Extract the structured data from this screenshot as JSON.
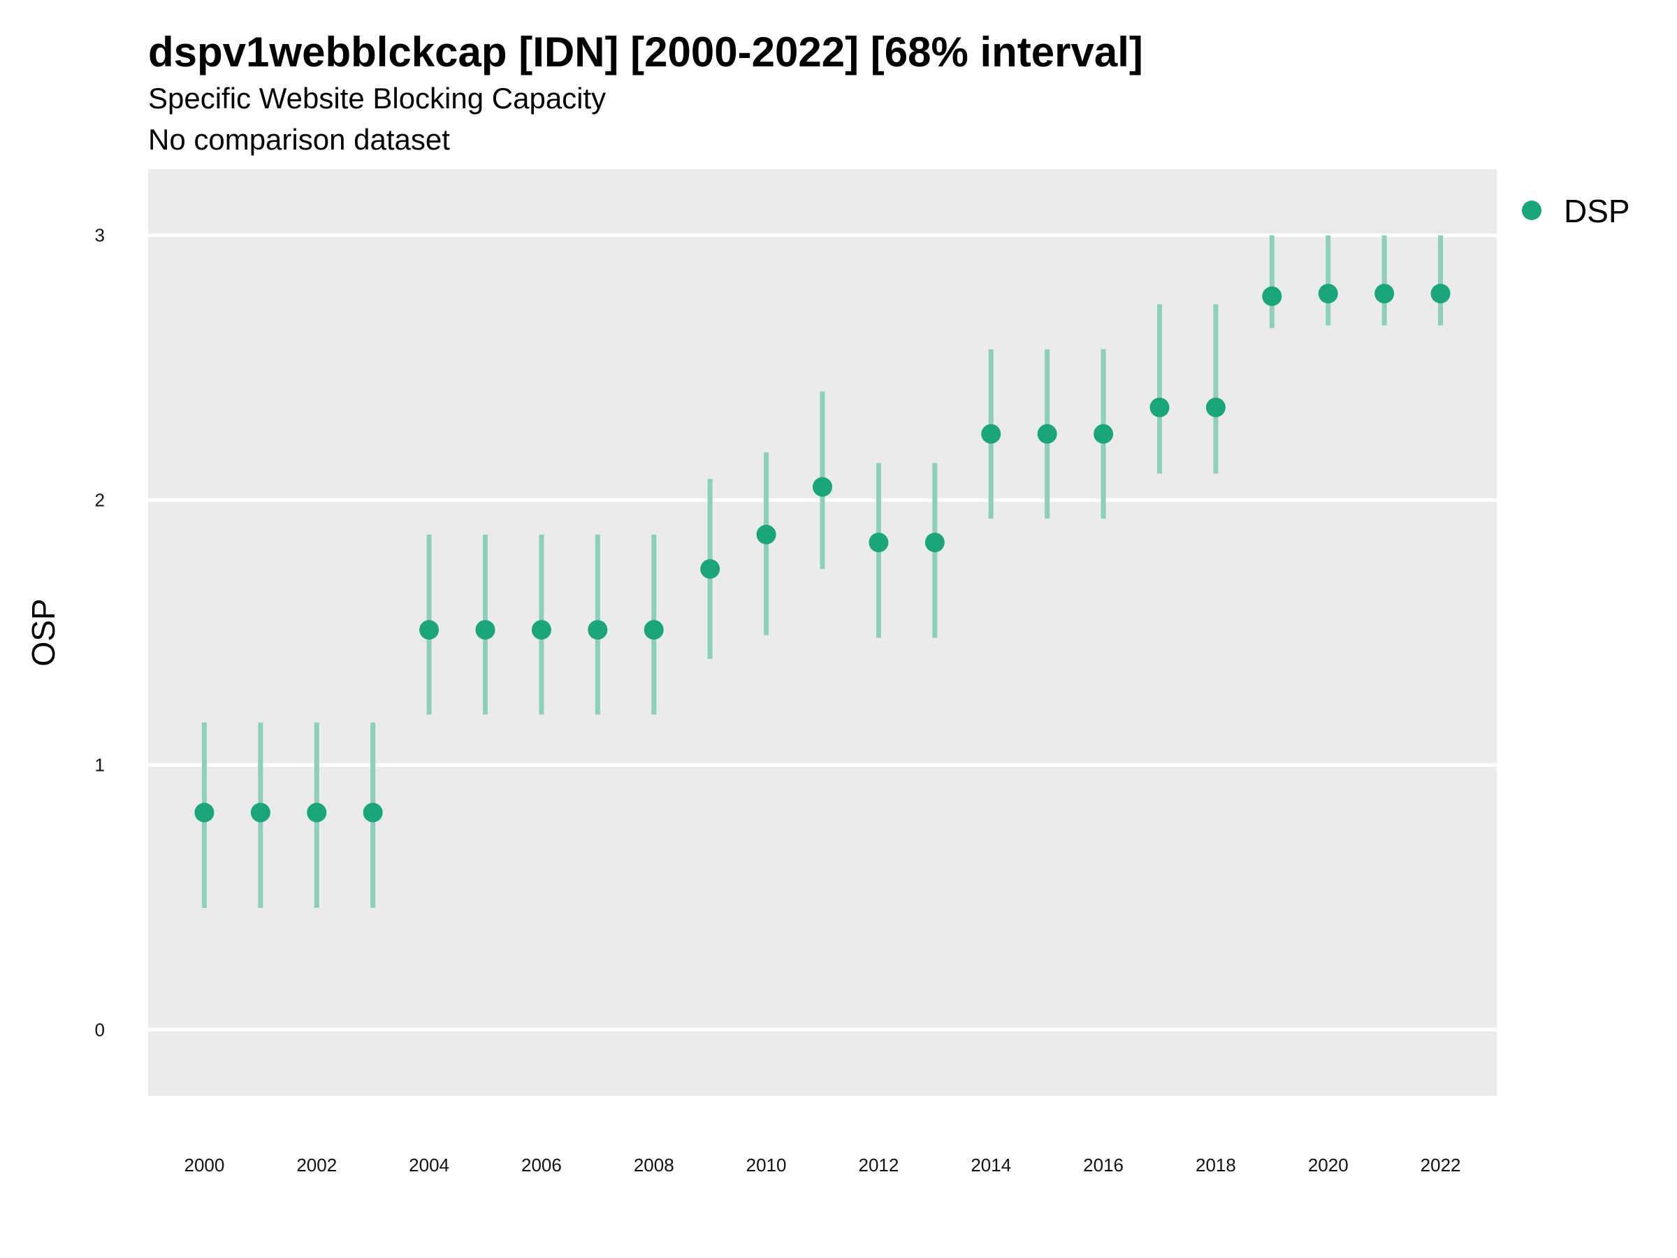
{
  "chart_data": {
    "type": "scatter",
    "title": "dspv1webblckcap [IDN] [2000-2022] [68% interval]",
    "subtitle": "Specific Website Blocking Capacity",
    "caption": "No comparison dataset",
    "ylabel": "OSP",
    "xlabel": "",
    "xlim": [
      1999,
      2023
    ],
    "ylim": [
      -0.25,
      3.25
    ],
    "x_ticks": [
      2000,
      2002,
      2004,
      2006,
      2008,
      2010,
      2012,
      2014,
      2016,
      2018,
      2020,
      2022
    ],
    "y_ticks": [
      0,
      1,
      2,
      3
    ],
    "grid": true,
    "legend": {
      "position": "top-right",
      "entries": [
        "DSP"
      ]
    },
    "colors": {
      "point": "#1aa57a",
      "interval": "#8ccfba",
      "panel": "#ebebeb",
      "grid": "#ffffff"
    },
    "series": [
      {
        "name": "DSP",
        "x": [
          2000,
          2001,
          2002,
          2003,
          2004,
          2005,
          2006,
          2007,
          2008,
          2009,
          2010,
          2011,
          2012,
          2013,
          2014,
          2015,
          2016,
          2017,
          2018,
          2019,
          2020,
          2021,
          2022
        ],
        "y": [
          0.82,
          0.82,
          0.82,
          0.82,
          1.51,
          1.51,
          1.51,
          1.51,
          1.51,
          1.74,
          1.87,
          2.05,
          1.84,
          1.84,
          2.25,
          2.25,
          2.25,
          2.35,
          2.35,
          2.77,
          2.78,
          2.78,
          2.78
        ],
        "lower": [
          0.46,
          0.46,
          0.46,
          0.46,
          1.19,
          1.19,
          1.19,
          1.19,
          1.19,
          1.4,
          1.49,
          1.74,
          1.48,
          1.48,
          1.93,
          1.93,
          1.93,
          2.1,
          2.1,
          2.65,
          2.66,
          2.66,
          2.66
        ],
        "upper": [
          1.16,
          1.16,
          1.16,
          1.16,
          1.87,
          1.87,
          1.87,
          1.87,
          1.87,
          2.08,
          2.18,
          2.41,
          2.14,
          2.14,
          2.57,
          2.57,
          2.57,
          2.74,
          2.74,
          3.0,
          3.0,
          3.0,
          3.0
        ]
      }
    ]
  }
}
